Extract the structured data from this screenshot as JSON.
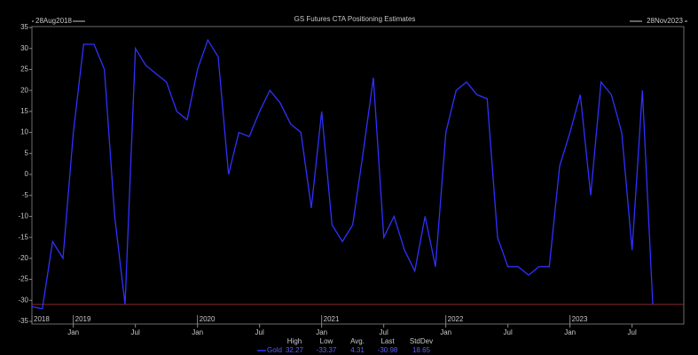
{
  "chart_data": {
    "type": "line",
    "title": "GS Futures CTA Positioning Estimates",
    "start_label": "28Aug2018",
    "end_label": "28Nov2023",
    "x": [
      "2018-09",
      "2018-10",
      "2018-11",
      "2018-12",
      "2019-01",
      "2019-02",
      "2019-03",
      "2019-04",
      "2019-05",
      "2019-06",
      "2019-07",
      "2019-08",
      "2019-09",
      "2019-10",
      "2019-11",
      "2019-12",
      "2020-01",
      "2020-02",
      "2020-03",
      "2020-04",
      "2020-05",
      "2020-06",
      "2020-07",
      "2020-08",
      "2020-09",
      "2020-10",
      "2020-11",
      "2020-12",
      "2021-01",
      "2021-02",
      "2021-03",
      "2021-04",
      "2021-05",
      "2021-06",
      "2021-07",
      "2021-08",
      "2021-09",
      "2021-10",
      "2021-11",
      "2021-12",
      "2022-01",
      "2022-02",
      "2022-03",
      "2022-04",
      "2022-05",
      "2022-06",
      "2022-07",
      "2022-08",
      "2022-09",
      "2022-10",
      "2022-11",
      "2022-12",
      "2023-01",
      "2023-02",
      "2023-03",
      "2023-04",
      "2023-05",
      "2023-06",
      "2023-07",
      "2023-08",
      "2023-09"
    ],
    "series": [
      {
        "name": "Gold",
        "color": "#3030ff",
        "values": [
          -31.5,
          -32,
          -16,
          -20,
          10,
          31,
          31,
          25,
          -10,
          -31,
          30,
          26,
          24,
          22,
          15,
          13,
          25,
          32,
          28,
          0,
          10,
          9,
          15,
          20,
          17,
          12,
          10,
          -8,
          15,
          -12,
          -16,
          -12,
          5,
          23,
          -15,
          -10,
          -18,
          -23,
          -10,
          -22,
          10,
          20,
          22,
          19,
          18,
          -15,
          -22,
          -22,
          -24,
          -22,
          -22,
          2,
          10,
          19,
          -5,
          22,
          19,
          10,
          -18,
          20,
          -31
        ]
      }
    ],
    "xlim": [
      "2018-09",
      "2023-12"
    ],
    "xticks": [
      {
        "value": "2019-01",
        "label": "Jan"
      },
      {
        "value": "2019-07",
        "label": "Jul"
      },
      {
        "value": "2020-01",
        "label": "Jan"
      },
      {
        "value": "2020-07",
        "label": "Jul"
      },
      {
        "value": "2021-01",
        "label": "Jan"
      },
      {
        "value": "2021-07",
        "label": "Jul"
      },
      {
        "value": "2022-01",
        "label": "Jan"
      },
      {
        "value": "2022-07",
        "label": "Jul"
      },
      {
        "value": "2023-01",
        "label": "Jan"
      },
      {
        "value": "2023-07",
        "label": "Jul"
      }
    ],
    "year_labels": [
      {
        "value": "2018-09",
        "label": "2018"
      },
      {
        "value": "2019-01",
        "label": "2019"
      },
      {
        "value": "2020-01",
        "label": "2020"
      },
      {
        "value": "2021-01",
        "label": "2021"
      },
      {
        "value": "2022-01",
        "label": "2022"
      },
      {
        "value": "2023-01",
        "label": "2023"
      }
    ],
    "ylim": [
      -35,
      35
    ],
    "yticks": [
      -35,
      -30,
      -25,
      -20,
      -15,
      -10,
      -5,
      0,
      5,
      10,
      15,
      20,
      25,
      30,
      35
    ],
    "reference_color": "#8b2a2a",
    "stats": {
      "headers": [
        "High",
        "Low",
        "Avg.",
        "Last",
        "StdDev"
      ],
      "values": [
        32.27,
        -33.37,
        4.31,
        -30.98,
        18.65
      ]
    }
  }
}
